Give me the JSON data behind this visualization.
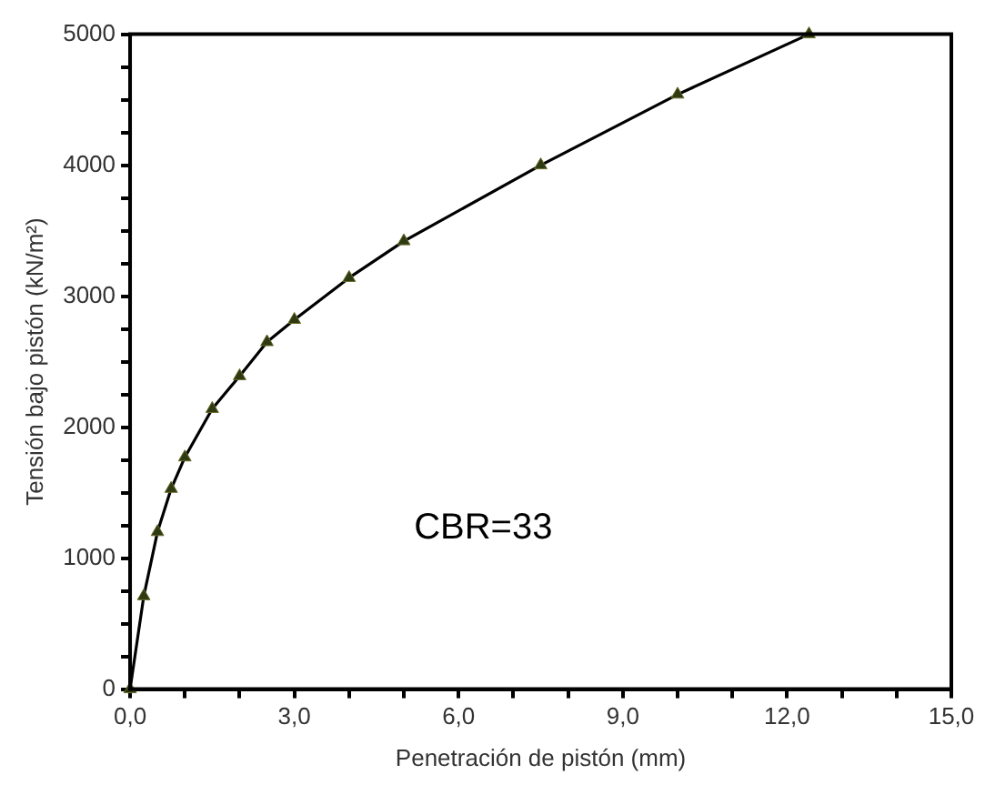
{
  "chart_data": {
    "type": "line",
    "xlabel": "Penetración de pistón (mm)",
    "ylabel": "Tensión bajo pistón (kN/m²)",
    "annotations": [
      "CBR=33"
    ],
    "x": [
      0,
      0.25,
      0.5,
      0.75,
      1,
      1.5,
      2,
      2.5,
      3,
      4,
      5,
      7.5,
      10,
      12.4
    ],
    "series": [
      {
        "color": "#000000",
        "values": [
          0,
          710,
          1200,
          1530,
          1770,
          2140,
          2390,
          2650,
          2820,
          3140,
          3420,
          4000,
          4540,
          5000
        ]
      }
    ],
    "xlim": [
      0,
      15
    ],
    "ylim": [
      0,
      5000
    ],
    "xticks": [
      {
        "value": 0,
        "label": "0,0"
      },
      {
        "value": 1,
        "label": null
      },
      {
        "value": 2,
        "label": null
      },
      {
        "value": 3,
        "label": "3,0"
      },
      {
        "value": 4,
        "label": null
      },
      {
        "value": 5,
        "label": null
      },
      {
        "value": 6,
        "label": "6,0"
      },
      {
        "value": 7,
        "label": null
      },
      {
        "value": 8,
        "label": null
      },
      {
        "value": 9,
        "label": "9,0"
      },
      {
        "value": 10,
        "label": null
      },
      {
        "value": 11,
        "label": null
      },
      {
        "value": 12,
        "label": "12,0"
      },
      {
        "value": 13,
        "label": null
      },
      {
        "value": 14,
        "label": null
      },
      {
        "value": 15,
        "label": "15,0"
      }
    ],
    "yticks": [
      0,
      {
        "value": 250,
        "label": null
      },
      {
        "value": 500,
        "label": null
      },
      {
        "value": 750,
        "label": null
      },
      1000,
      {
        "value": 1250,
        "label": null
      },
      {
        "value": 1500,
        "label": null
      },
      {
        "value": 1750,
        "label": null
      },
      2000,
      {
        "value": 2250,
        "label": null
      },
      {
        "value": 2500,
        "label": null
      },
      {
        "value": 2750,
        "label": null
      },
      3000,
      {
        "value": 3250,
        "label": null
      },
      {
        "value": 3500,
        "label": null
      },
      {
        "value": 3750,
        "label": null
      },
      4000,
      {
        "value": 4250,
        "label": null
      },
      {
        "value": 4500,
        "label": null
      },
      {
        "value": 4750,
        "label": null
      },
      5000
    ],
    "grid": false,
    "legend": false,
    "marker": "triangle",
    "line_style": "solid"
  }
}
